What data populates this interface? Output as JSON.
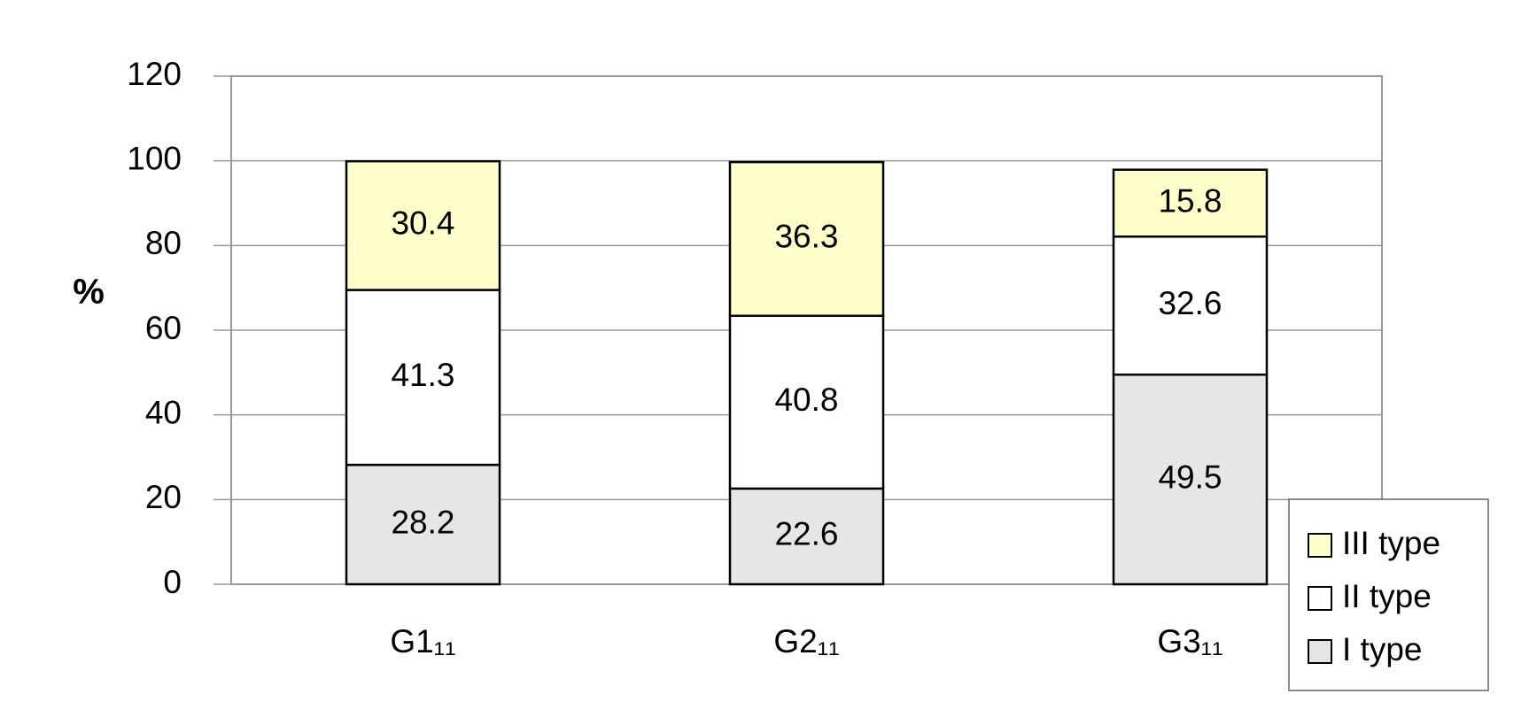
{
  "chart_data": {
    "type": "stacked_bar",
    "y_label": "%",
    "categories": [
      "G1₁₁",
      "G2₁₁",
      "G3₁₁"
    ],
    "series": [
      {
        "name": "I type",
        "color": "#e6e6e6",
        "values": [
          28.2,
          22.6,
          49.5
        ]
      },
      {
        "name": "II type",
        "color": "#ffffff",
        "values": [
          41.3,
          40.8,
          32.6
        ]
      },
      {
        "name": "III type",
        "color": "#ffffcc",
        "values": [
          30.4,
          36.3,
          15.8
        ]
      }
    ],
    "ylim": [
      0,
      120
    ],
    "yticks": [
      0,
      20,
      40,
      60,
      80,
      100,
      120
    ],
    "grid": true,
    "legend": "lower right"
  }
}
